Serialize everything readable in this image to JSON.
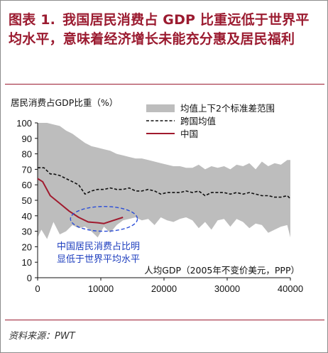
{
  "title": {
    "prefix": "图表 1.",
    "text": "我国居民消费占 GDP 比重远低于世界平均水平，意味着经济增长未能充分惠及居民福利"
  },
  "source": "资料来源：PWT",
  "colors": {
    "band": "#bdbdbd",
    "avg": "#111111",
    "china": "#a01a2e",
    "ellipse": "#2a4dd8",
    "title": "#9b1b30"
  },
  "chart_data": {
    "type": "line",
    "ylabel": "居民消费占GDP比重（%）",
    "xlabel": "人均GDP（2005年不变价美元，PPP）",
    "xlim": [
      0,
      40000
    ],
    "ylim": [
      0,
      100
    ],
    "xticks": [
      0,
      10000,
      20000,
      30000,
      40000
    ],
    "yticks": [
      0,
      10,
      20,
      30,
      40,
      50,
      60,
      70,
      80,
      90,
      100
    ],
    "legend": [
      {
        "label": "均值上下2个标准差范围",
        "kind": "band"
      },
      {
        "label": "跨国均值",
        "kind": "dashed"
      },
      {
        "label": "中国",
        "kind": "line"
      }
    ],
    "band": {
      "name": "均值上下2个标准差范围",
      "x": [
        0,
        600,
        1500,
        2500,
        3500,
        4500,
        5500,
        6500,
        7500,
        8500,
        9500,
        10500,
        11500,
        12500,
        13500,
        14500,
        15500,
        16500,
        17500,
        18500,
        19500,
        20500,
        21500,
        22500,
        23500,
        24500,
        25500,
        26500,
        27500,
        28500,
        29500,
        30500,
        31500,
        32500,
        33500,
        34500,
        35500,
        36500,
        37500,
        38500,
        39500,
        40000
      ],
      "upper": [
        100,
        100,
        100,
        99,
        98,
        95,
        93,
        90,
        87,
        85,
        84,
        83,
        82,
        80,
        79,
        78,
        77,
        77,
        76,
        75,
        74,
        73,
        72,
        72,
        71,
        71,
        73,
        70,
        72,
        71,
        72,
        70,
        73,
        72,
        74,
        70,
        75,
        72,
        74,
        73,
        76,
        76
      ],
      "lower": [
        26,
        31,
        25,
        36,
        28,
        30,
        34,
        32,
        33,
        30,
        26,
        33,
        29,
        34,
        37,
        38,
        39,
        37,
        38,
        34,
        39,
        37,
        36,
        38,
        39,
        37,
        32,
        36,
        31,
        37,
        38,
        33,
        38,
        36,
        32,
        35,
        34,
        29,
        31,
        33,
        34,
        26
      ]
    },
    "series": [
      {
        "name": "跨国均值",
        "style": "dashed",
        "x": [
          0,
          1000,
          2000,
          2500,
          3500,
          4500,
          5500,
          6500,
          7500,
          8500,
          9500,
          10500,
          11500,
          12500,
          13500,
          14500,
          15500,
          16500,
          17500,
          18500,
          19500,
          20500,
          21500,
          22500,
          23500,
          24500,
          25500,
          26500,
          27500,
          28500,
          29500,
          30500,
          31500,
          32500,
          33500,
          34500,
          35500,
          36500,
          37500,
          38500,
          39500,
          40000
        ],
        "values": [
          71,
          71,
          67,
          67,
          66,
          64,
          62,
          60,
          54,
          56,
          57,
          57,
          58,
          57,
          57,
          58,
          56,
          56,
          57,
          56,
          54,
          55,
          55,
          55,
          56,
          55,
          56,
          53,
          55,
          55,
          55,
          54,
          55,
          54,
          55,
          54,
          53,
          53,
          52,
          52,
          53,
          51
        ]
      },
      {
        "name": "中国",
        "style": "solid",
        "x": [
          0,
          800,
          2000,
          3500,
          5000,
          6500,
          8000,
          9500,
          10500,
          12000,
          13500
        ],
        "values": [
          64,
          62,
          53,
          48,
          43,
          39,
          36,
          35.5,
          35,
          37,
          39
        ]
      }
    ],
    "annotation": {
      "text": [
        "中国居民消费占比明",
        "显低于世界平均水平"
      ],
      "ellipse_center": [
        10500,
        38
      ],
      "ellipse_radius": [
        5300,
        8
      ]
    },
    "grid": false,
    "legend_position": "top-right"
  }
}
